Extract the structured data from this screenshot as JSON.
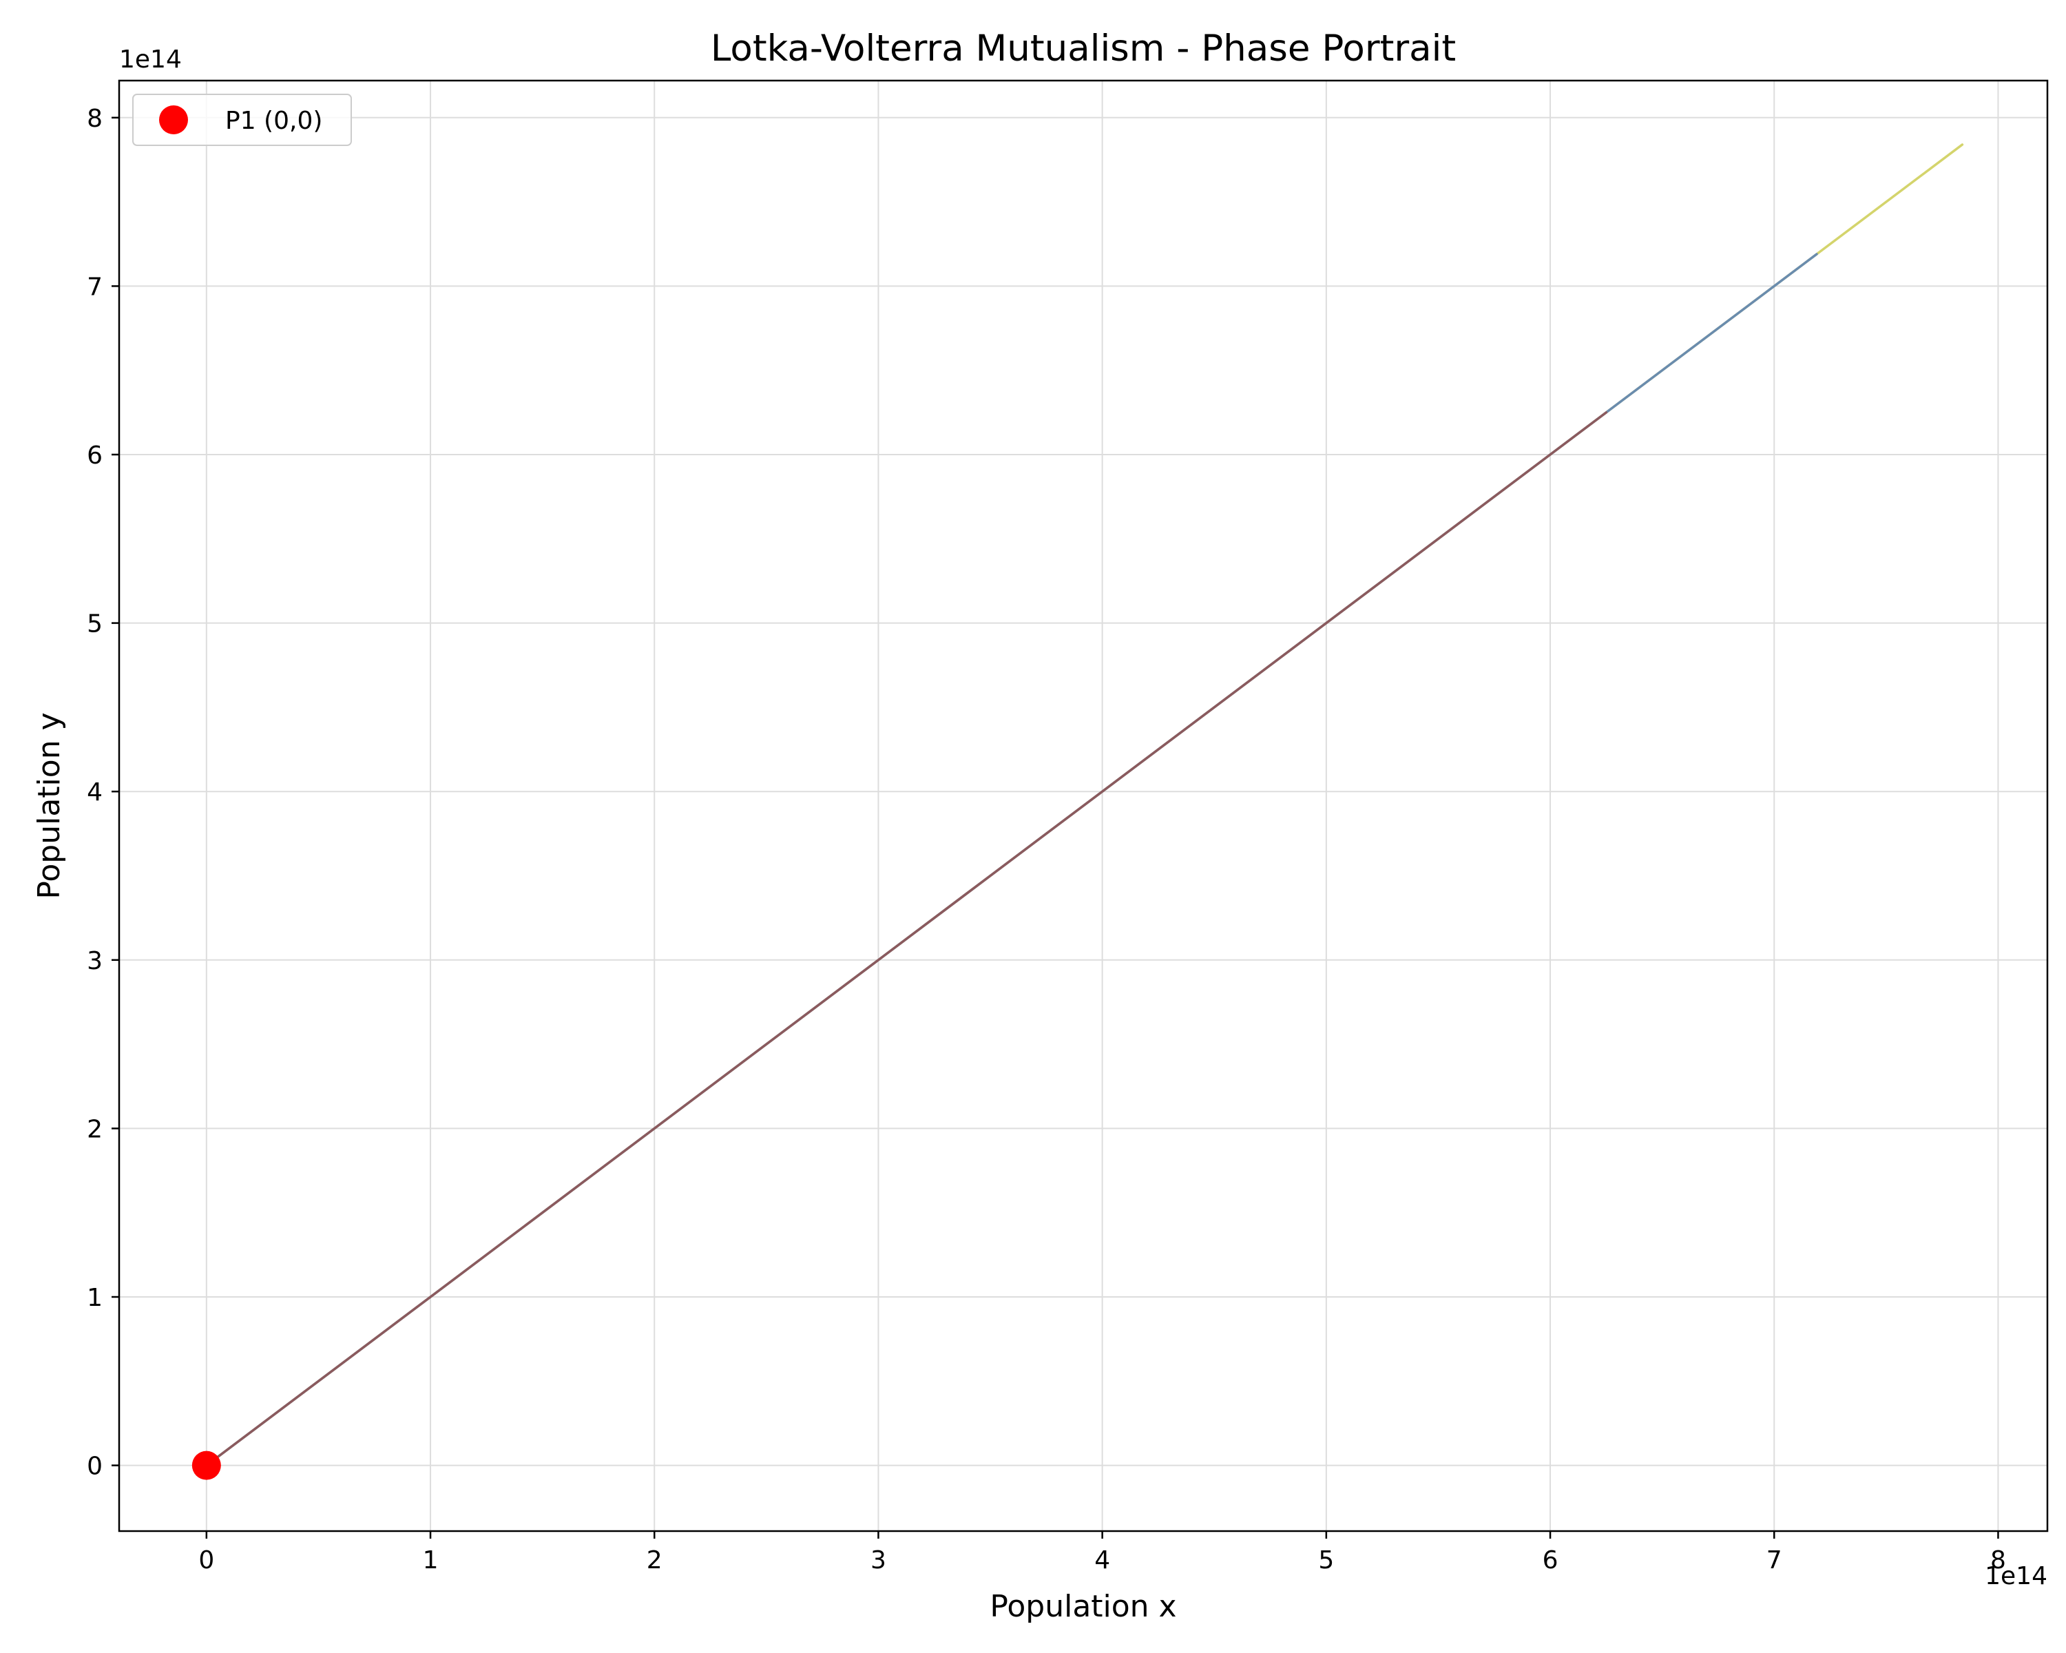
{
  "chart_data": {
    "type": "line",
    "title": "Lotka-Volterra Mutualism - Phase Portrait",
    "xlabel": "Population x",
    "ylabel": "Population y",
    "x_offset_label": "1e14",
    "y_offset_label": "1e14",
    "xlim": [
      -0.39,
      8.22
    ],
    "ylim": [
      -0.39,
      8.22
    ],
    "xticks": [
      0,
      1,
      2,
      3,
      4,
      5,
      6,
      7,
      8
    ],
    "yticks": [
      0,
      1,
      2,
      3,
      4,
      5,
      6,
      7,
      8
    ],
    "xtick_labels": [
      "0",
      "1",
      "2",
      "3",
      "4",
      "5",
      "6",
      "7",
      "8"
    ],
    "ytick_labels": [
      "0",
      "1",
      "2",
      "3",
      "4",
      "5",
      "6",
      "7",
      "8"
    ],
    "grid": true,
    "legend_position": "top-left",
    "series": [
      {
        "x": [
          0,
          7.84
        ],
        "y": [
          0,
          7.84
        ],
        "color": "#d4d46c"
      },
      {
        "x": [
          0,
          7.19
        ],
        "y": [
          0,
          7.19
        ],
        "color": "#6a8cae"
      },
      {
        "x": [
          0,
          6.25
        ],
        "y": [
          0,
          6.25
        ],
        "color": "#8b5a5e"
      }
    ],
    "markers": [
      {
        "name": "P1 (0,0)",
        "x": 0,
        "y": 0,
        "color": "#ff0000"
      }
    ]
  }
}
